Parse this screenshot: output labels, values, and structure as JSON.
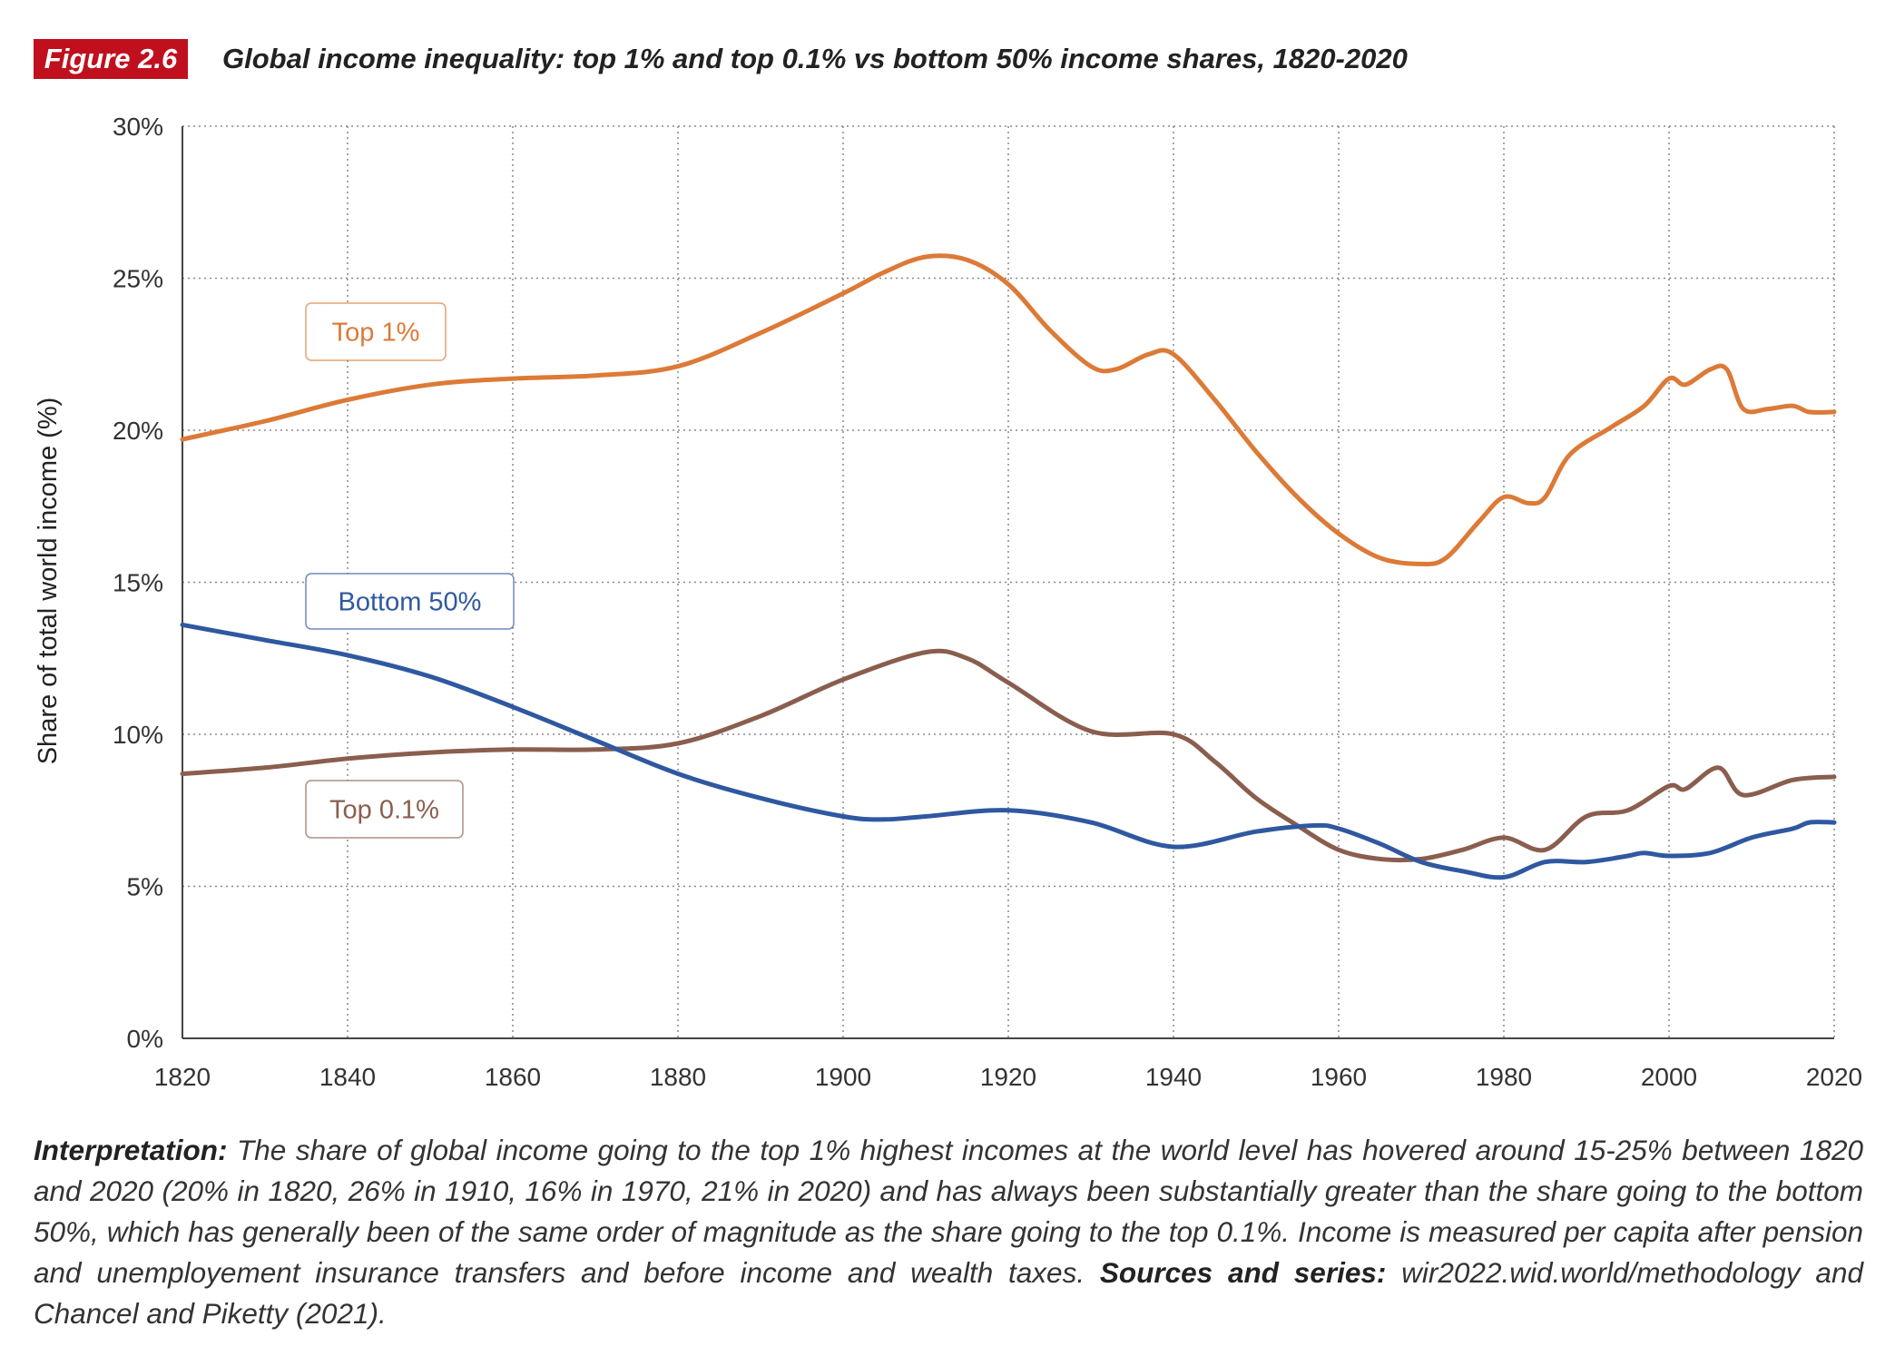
{
  "figure": {
    "number": "Figure 2.6",
    "title": "Global income inequality: top 1% and top 0.1% vs bottom 50% income shares, 1820-2020"
  },
  "chart_data": {
    "type": "line",
    "title": "Global income inequality: top 1% and top 0.1% vs bottom 50% income shares, 1820-2020",
    "xlabel": "",
    "ylabel": "Share of total world income (%)",
    "xlim": [
      1820,
      2020
    ],
    "ylim": [
      0,
      30
    ],
    "x_ticks": [
      "1820",
      "1840",
      "1860",
      "1880",
      "1900",
      "1920",
      "1940",
      "1960",
      "1980",
      "2000",
      "2020"
    ],
    "y_ticks": [
      "0%",
      "5%",
      "10%",
      "15%",
      "20%",
      "25%",
      "30%"
    ],
    "grid": true,
    "legend": "inline labels",
    "series": [
      {
        "name": "Top 1%",
        "color": "#dc7a37",
        "points": [
          [
            1820,
            19.7
          ],
          [
            1830,
            20.3
          ],
          [
            1840,
            21.0
          ],
          [
            1850,
            21.5
          ],
          [
            1860,
            21.7
          ],
          [
            1870,
            21.8
          ],
          [
            1880,
            22.1
          ],
          [
            1890,
            23.2
          ],
          [
            1900,
            24.5
          ],
          [
            1905,
            25.2
          ],
          [
            1910,
            25.7
          ],
          [
            1915,
            25.6
          ],
          [
            1920,
            24.8
          ],
          [
            1925,
            23.3
          ],
          [
            1930,
            22.1
          ],
          [
            1933,
            22.0
          ],
          [
            1937,
            22.5
          ],
          [
            1940,
            22.5
          ],
          [
            1945,
            21.0
          ],
          [
            1950,
            19.3
          ],
          [
            1955,
            17.8
          ],
          [
            1960,
            16.6
          ],
          [
            1965,
            15.8
          ],
          [
            1970,
            15.6
          ],
          [
            1973,
            15.8
          ],
          [
            1977,
            17.0
          ],
          [
            1980,
            17.8
          ],
          [
            1983,
            17.6
          ],
          [
            1985,
            17.8
          ],
          [
            1988,
            19.2
          ],
          [
            1993,
            20.1
          ],
          [
            1997,
            20.8
          ],
          [
            2000,
            21.7
          ],
          [
            2002,
            21.5
          ],
          [
            2005,
            22.0
          ],
          [
            2007,
            22.0
          ],
          [
            2009,
            20.7
          ],
          [
            2012,
            20.7
          ],
          [
            2015,
            20.8
          ],
          [
            2017,
            20.6
          ],
          [
            2020,
            20.6
          ]
        ]
      },
      {
        "name": "Bottom 50%",
        "color": "#2f58a0",
        "points": [
          [
            1820,
            13.6
          ],
          [
            1830,
            13.1
          ],
          [
            1840,
            12.6
          ],
          [
            1850,
            11.9
          ],
          [
            1860,
            10.9
          ],
          [
            1870,
            9.8
          ],
          [
            1880,
            8.7
          ],
          [
            1890,
            7.9
          ],
          [
            1900,
            7.3
          ],
          [
            1905,
            7.2
          ],
          [
            1910,
            7.3
          ],
          [
            1920,
            7.5
          ],
          [
            1930,
            7.1
          ],
          [
            1940,
            6.3
          ],
          [
            1950,
            6.8
          ],
          [
            1957,
            7.0
          ],
          [
            1960,
            6.9
          ],
          [
            1965,
            6.4
          ],
          [
            1970,
            5.8
          ],
          [
            1975,
            5.5
          ],
          [
            1980,
            5.3
          ],
          [
            1985,
            5.8
          ],
          [
            1990,
            5.8
          ],
          [
            1995,
            6.0
          ],
          [
            1997,
            6.1
          ],
          [
            2000,
            6.0
          ],
          [
            2005,
            6.1
          ],
          [
            2010,
            6.6
          ],
          [
            2015,
            6.9
          ],
          [
            2017,
            7.1
          ],
          [
            2020,
            7.1
          ]
        ]
      },
      {
        "name": "Top 0.1%",
        "color": "#8a5e4e",
        "points": [
          [
            1820,
            8.7
          ],
          [
            1830,
            8.9
          ],
          [
            1840,
            9.2
          ],
          [
            1850,
            9.4
          ],
          [
            1860,
            9.5
          ],
          [
            1870,
            9.5
          ],
          [
            1880,
            9.7
          ],
          [
            1890,
            10.6
          ],
          [
            1900,
            11.8
          ],
          [
            1910,
            12.7
          ],
          [
            1915,
            12.5
          ],
          [
            1920,
            11.7
          ],
          [
            1930,
            10.1
          ],
          [
            1940,
            10.0
          ],
          [
            1945,
            9.1
          ],
          [
            1950,
            7.9
          ],
          [
            1955,
            7.0
          ],
          [
            1960,
            6.2
          ],
          [
            1965,
            5.9
          ],
          [
            1970,
            5.9
          ],
          [
            1975,
            6.2
          ],
          [
            1980,
            6.6
          ],
          [
            1985,
            6.2
          ],
          [
            1990,
            7.3
          ],
          [
            1995,
            7.5
          ],
          [
            2000,
            8.3
          ],
          [
            2002,
            8.2
          ],
          [
            2006,
            8.9
          ],
          [
            2009,
            8.0
          ],
          [
            2015,
            8.5
          ],
          [
            2020,
            8.6
          ]
        ]
      }
    ]
  },
  "note": {
    "interpretation_label": "Interpretation:",
    "interpretation_text": " The share of global income going to the top 1% highest incomes at the world level has hovered around 15-25% between 1820 and 2020 (20% in 1820, 26% in 1910, 16% in 1970, 21% in 2020) and has always been substantially greater than the share going to the bottom 50%, which has generally been of the same order of magnitude as the share going to the top 0.1%. Income is measured per capita after pension and unemployement insurance transfers and before income and wealth taxes. ",
    "sources_label": "Sources and series:",
    "sources_text": " wir2022.wid.world/methodology and Chancel and Piketty (2021)."
  }
}
